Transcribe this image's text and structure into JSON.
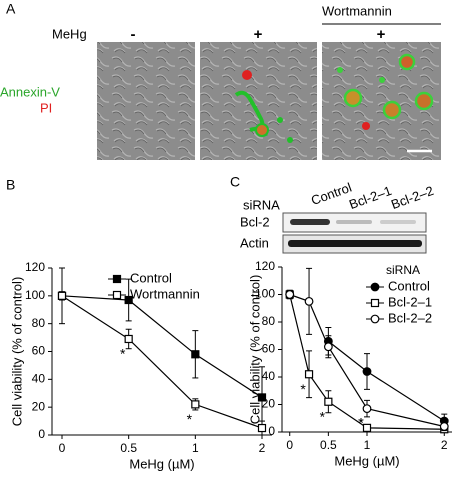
{
  "panel_labels": [
    "A",
    "B",
    "C"
  ],
  "panel_a": {
    "treatment_label": "MeHg",
    "conditions": [
      "-",
      "+",
      "+"
    ],
    "inhibitor": "Wortmannin",
    "stains": [
      {
        "name": "Annexin-V",
        "color": "#2aa52a"
      },
      {
        "name": "PI",
        "color": "#e02020"
      }
    ]
  },
  "blot": {
    "label": "siRNA",
    "lanes": [
      "Control",
      "Bcl-2–1",
      "Bcl-2–2"
    ],
    "rows": [
      "Bcl-2",
      "Actin"
    ]
  },
  "chart_data": [
    {
      "type": "line",
      "x_label": "MeHg (µM)",
      "y_label": "Cell viability (% of control)",
      "categories": [
        "0",
        "0.5",
        "1",
        "2"
      ],
      "ylim": [
        0,
        120
      ],
      "yticks": [
        0,
        20,
        40,
        60,
        80,
        100,
        120
      ],
      "legend": "upper right",
      "series": [
        {
          "name": "Control",
          "color": "#000000",
          "marker": "square",
          "filled": true,
          "values": [
            100,
            97,
            58,
            27
          ],
          "errors": [
            20,
            15,
            17,
            22
          ]
        },
        {
          "name": "Wortmannin",
          "color": "#000000",
          "marker": "square",
          "filled": false,
          "values": [
            100,
            69,
            22,
            5
          ],
          "errors": [
            3,
            7,
            4,
            5
          ],
          "significance": [
            null,
            "*",
            "*",
            null
          ]
        }
      ]
    },
    {
      "type": "line",
      "x_label": "MeHg (µM)",
      "y_label": "Cell viability (% of control)",
      "x": [
        0,
        0.25,
        0.5,
        1,
        2
      ],
      "xlim": [
        -0.1,
        2.1
      ],
      "xticks": [
        0,
        0.5,
        1,
        2
      ],
      "ylim": [
        0,
        120
      ],
      "yticks": [
        0,
        20,
        40,
        60,
        80,
        100,
        120
      ],
      "legend": "upper right",
      "legend_title": "siRNA",
      "series": [
        {
          "name": "Control",
          "color": "#000000",
          "marker": "circle",
          "filled": true,
          "values": [
            100,
            null,
            66,
            44,
            8
          ],
          "errors": [
            3,
            null,
            10,
            13,
            5
          ]
        },
        {
          "name": "Bcl-2–1",
          "color": "#000000",
          "marker": "square",
          "filled": false,
          "values": [
            100,
            42,
            22,
            3,
            2
          ],
          "errors": [
            3,
            17,
            8,
            2,
            2
          ],
          "significance": [
            null,
            "*",
            "*",
            "*",
            null
          ]
        },
        {
          "name": "Bcl-2–2",
          "color": "#000000",
          "marker": "circle",
          "filled": false,
          "values": [
            100,
            95,
            62,
            17,
            4
          ],
          "errors": [
            3,
            24,
            8,
            6,
            3
          ],
          "significance": [
            null,
            null,
            null,
            "*",
            null
          ]
        }
      ]
    }
  ]
}
